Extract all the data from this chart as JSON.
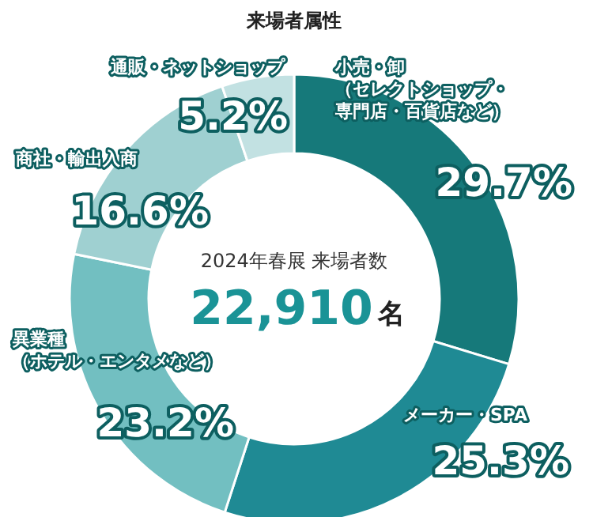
{
  "chart_data": {
    "type": "donut",
    "title": "来場者属性",
    "categories": [
      "小売・卸（セレクトショップ・専門店・百貨店など）",
      "メーカー・SPA",
      "異業種（ホテル・エンタメなど）",
      "商社・輸出入商",
      "通販・ネットショップ"
    ],
    "values": [
      29.7,
      25.3,
      23.2,
      16.6,
      5.2
    ],
    "value_labels": [
      "29.7%",
      "25.3%",
      "23.2%",
      "16.6%",
      "5.2%"
    ],
    "colors": [
      "#16797a",
      "#1f8a94",
      "#72bfc1",
      "#9fd0d1",
      "#c2e1e2"
    ],
    "annotations": [
      "2024年春展 来場者数",
      "22,910",
      "名"
    ]
  }
}
